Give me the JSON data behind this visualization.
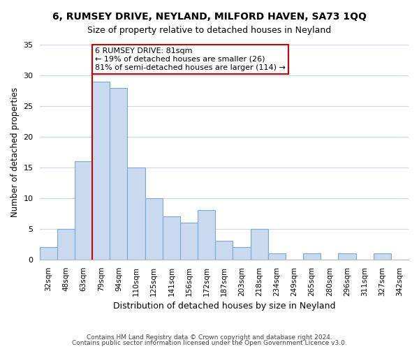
{
  "title": "6, RUMSEY DRIVE, NEYLAND, MILFORD HAVEN, SA73 1QQ",
  "subtitle": "Size of property relative to detached houses in Neyland",
  "xlabel": "Distribution of detached houses by size in Neyland",
  "ylabel": "Number of detached properties",
  "bin_labels": [
    "32sqm",
    "48sqm",
    "63sqm",
    "79sqm",
    "94sqm",
    "110sqm",
    "125sqm",
    "141sqm",
    "156sqm",
    "172sqm",
    "187sqm",
    "203sqm",
    "218sqm",
    "234sqm",
    "249sqm",
    "265sqm",
    "280sqm",
    "296sqm",
    "311sqm",
    "327sqm",
    "342sqm"
  ],
  "bar_values": [
    2,
    5,
    16,
    29,
    28,
    15,
    10,
    7,
    6,
    8,
    3,
    2,
    5,
    1,
    0,
    1,
    0,
    1,
    0,
    1,
    0
  ],
  "bar_color": "#c9d9f0",
  "bar_edge_color": "#7aaad0",
  "ylim": [
    0,
    35
  ],
  "yticks": [
    0,
    5,
    10,
    15,
    20,
    25,
    30,
    35
  ],
  "vline_bin_idx": 3,
  "vline_color": "#cc0000",
  "annotation_text": "6 RUMSEY DRIVE: 81sqm\n← 19% of detached houses are smaller (26)\n81% of semi-detached houses are larger (114) →",
  "annotation_box_color": "#ffffff",
  "annotation_box_edge": "#cc0000",
  "footer_line1": "Contains HM Land Registry data © Crown copyright and database right 2024.",
  "footer_line2": "Contains public sector information licensed under the Open Government Licence v3.0.",
  "background_color": "#ffffff",
  "grid_color": "#c8d8e8"
}
